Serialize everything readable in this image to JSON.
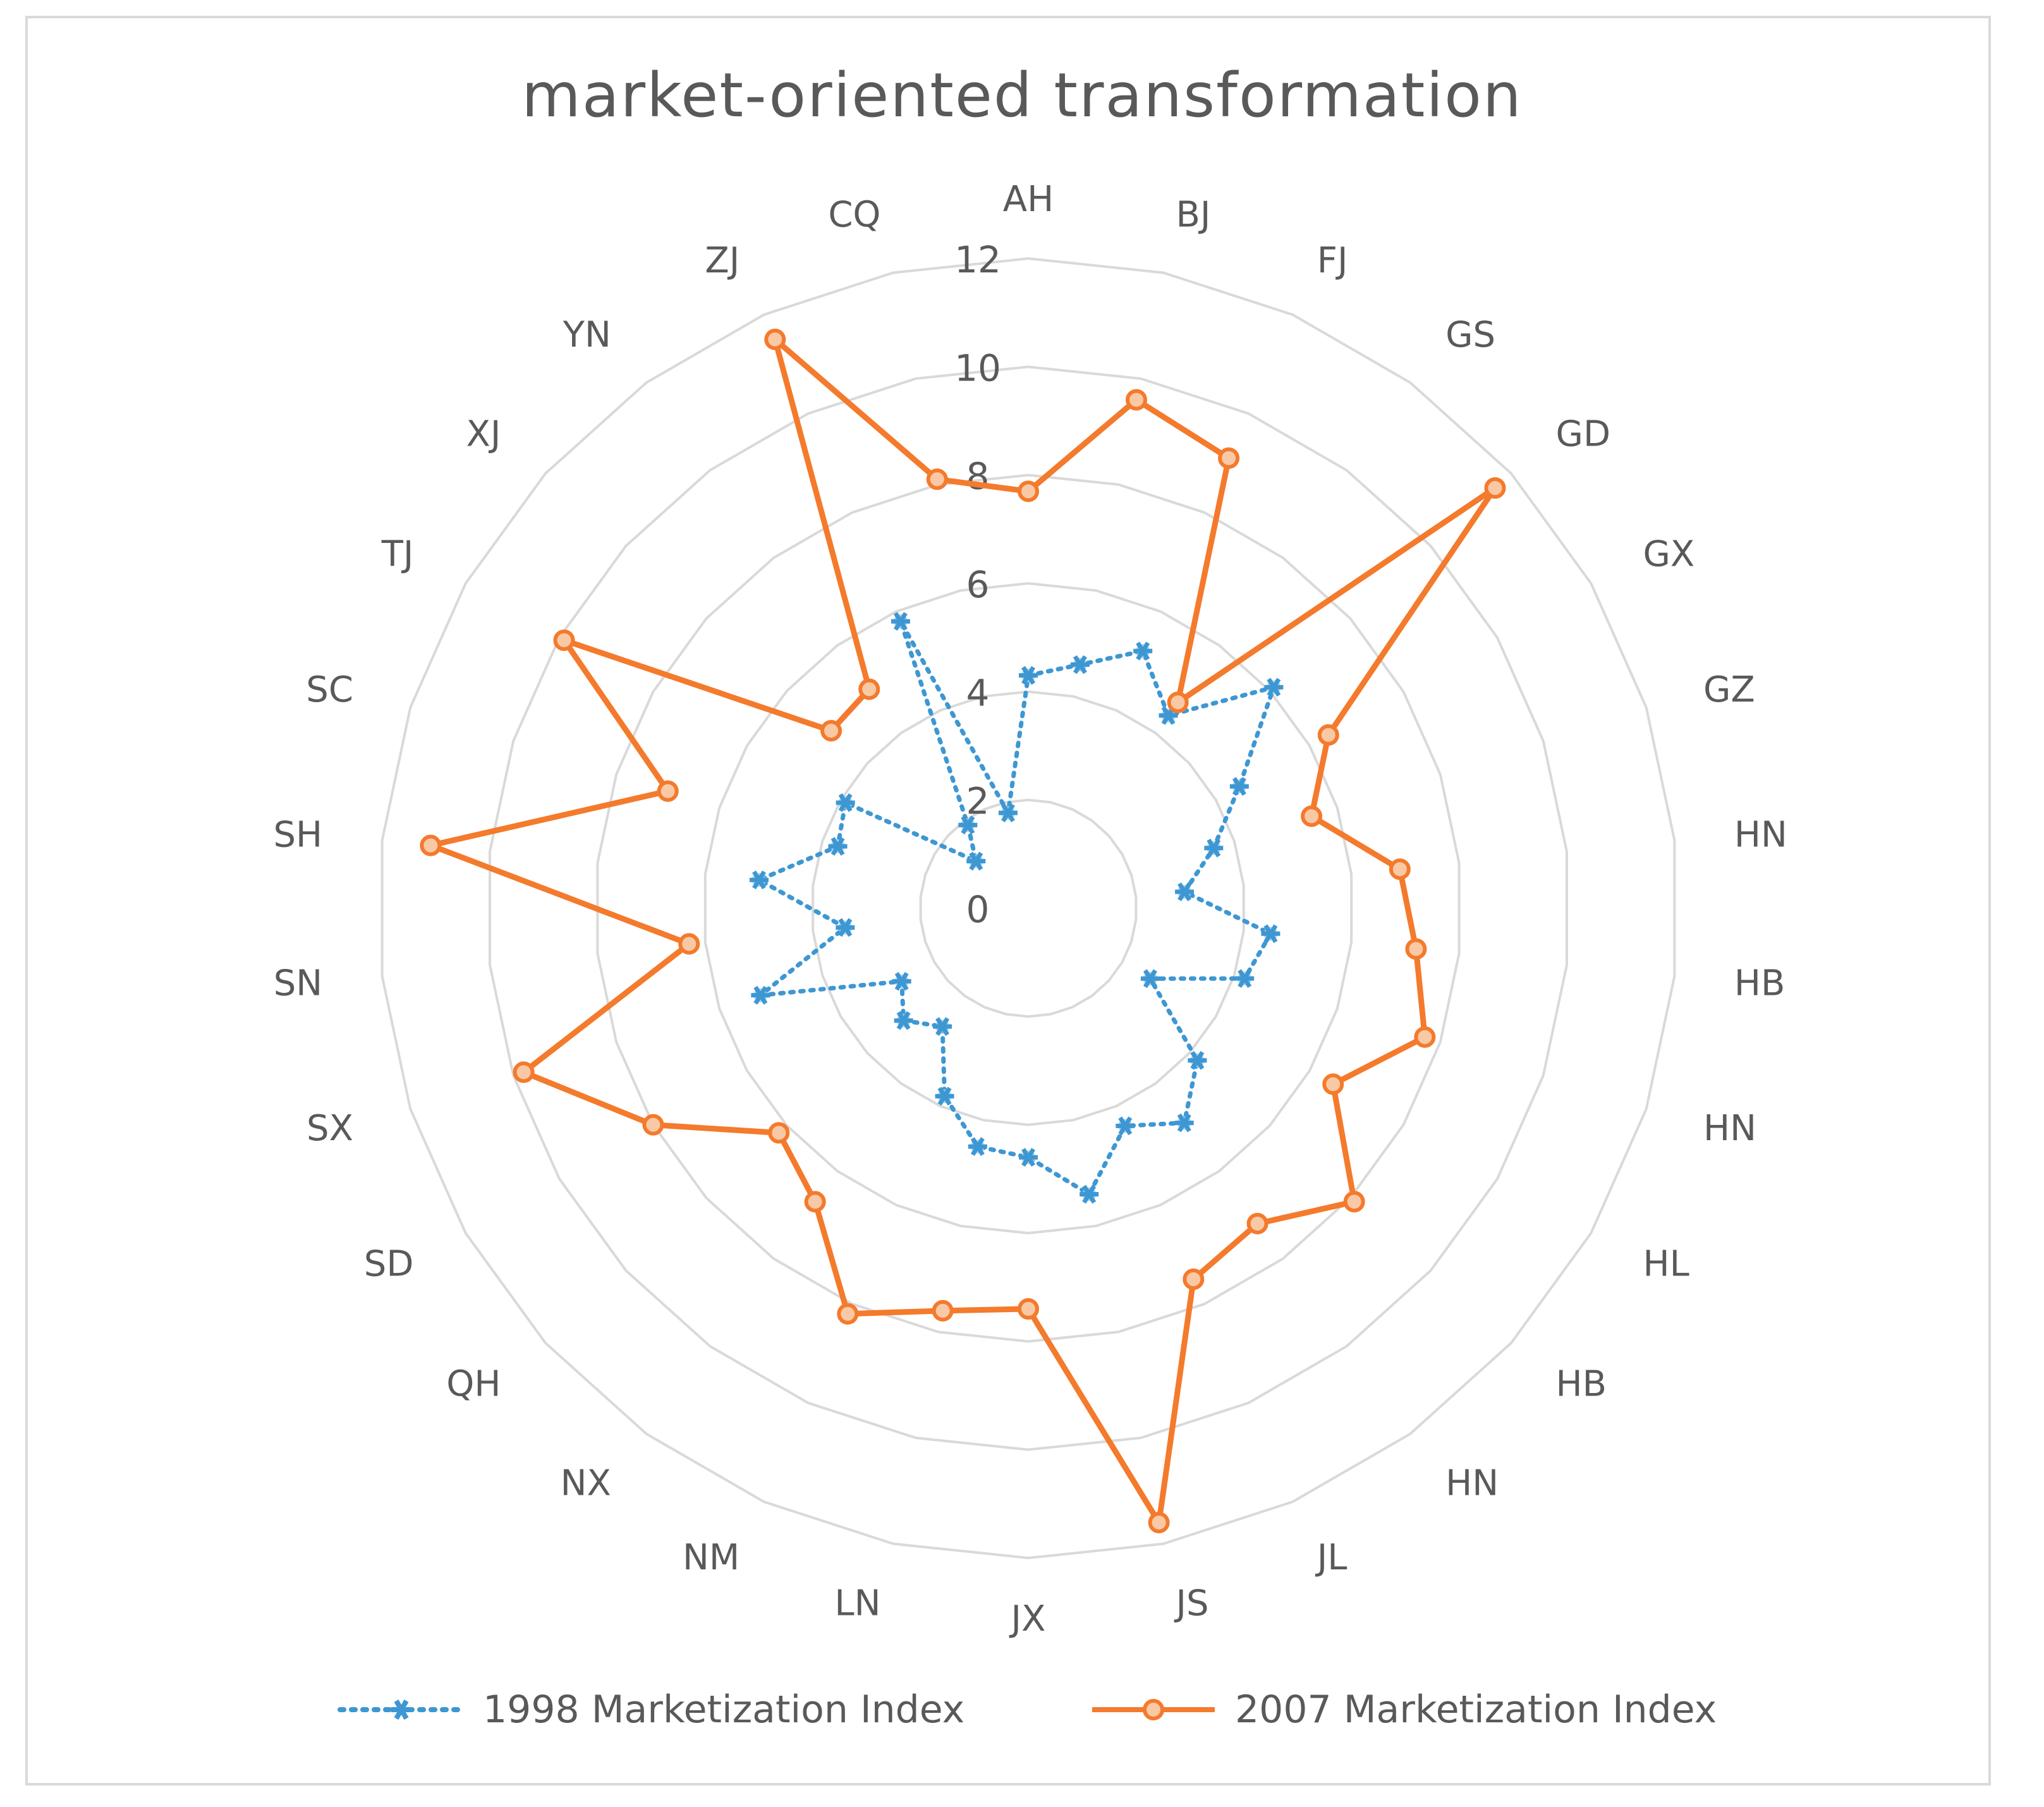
{
  "chart_data": {
    "type": "radar",
    "title": "market-oriented transformation",
    "categories": [
      "AH",
      "BJ",
      "FJ",
      "GS",
      "GD",
      "GX",
      "GZ",
      "HN",
      "HB",
      "HN",
      "HL",
      "HB",
      "HN",
      "JL",
      "JS",
      "JX",
      "LN",
      "NM",
      "NX",
      "QH",
      "SD",
      "SX",
      "SN",
      "SH",
      "SC",
      "TJ",
      "XJ",
      "YN",
      "ZJ",
      "CQ"
    ],
    "radial_ticks": [
      "0",
      "2",
      "4",
      "6",
      "8",
      "10",
      "12"
    ],
    "rlim": [
      0,
      12
    ],
    "grid": true,
    "legend_position": "bottom",
    "series": [
      {
        "name": "1998 Marketization Index",
        "color": "#3d97d3",
        "style": "dotted",
        "marker": "asterisk",
        "values": [
          4.3,
          4.6,
          5.2,
          4.4,
          6.1,
          4.5,
          3.6,
          2.9,
          4.5,
          4.2,
          2.6,
          4.2,
          4.9,
          4.4,
          5.4,
          4.6,
          4.5,
          3.8,
          2.7,
          3.1,
          2.7,
          5.2,
          3.4,
          5.0,
          3.7,
          3.9,
          1.3,
          1.9,
          5.8,
          1.8
        ]
      },
      {
        "name": "2007 Marketization Index",
        "color": "#f47a2c",
        "style": "solid",
        "marker": "circle",
        "values": [
          7.7,
          9.6,
          9.1,
          4.7,
          11.6,
          6.4,
          5.5,
          6.9,
          7.2,
          7.7,
          6.5,
          8.1,
          7.2,
          7.5,
          11.6,
          7.4,
          7.6,
          8.2,
          6.7,
          6.2,
          8.0,
          9.8,
          6.3,
          11.1,
          7.0,
          9.9,
          4.9,
          5.0,
          11.5,
          8.1
        ]
      }
    ]
  }
}
